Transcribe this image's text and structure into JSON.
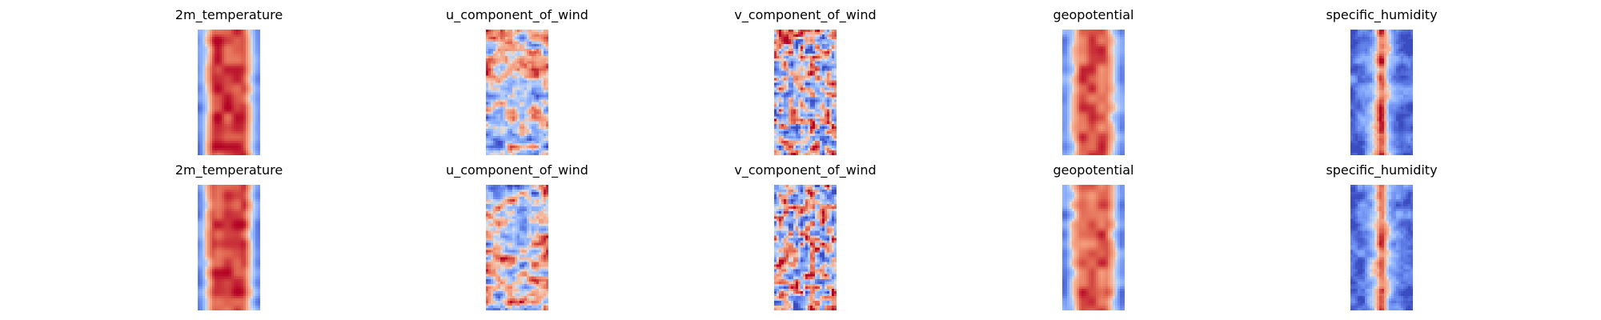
{
  "figure": {
    "colormap": "coolwarm",
    "colors": {
      "cool": "#3b4cc0",
      "neutral": "#dddddd",
      "warm": "#b40426",
      "background": "#ffffff"
    },
    "rows": [
      {
        "panels": [
          {
            "title": "2m_temperature",
            "pattern": "band-warm-center"
          },
          {
            "title": "u_component_of_wind",
            "pattern": "streaky-mixed"
          },
          {
            "title": "v_component_of_wind",
            "pattern": "speckled-mixed"
          },
          {
            "title": "geopotential",
            "pattern": "band-warm-center"
          },
          {
            "title": "specific_humidity",
            "pattern": "narrow-warm-core"
          }
        ]
      },
      {
        "panels": [
          {
            "title": "2m_temperature",
            "pattern": "band-warm-center"
          },
          {
            "title": "u_component_of_wind",
            "pattern": "streaky-mixed"
          },
          {
            "title": "v_component_of_wind",
            "pattern": "speckled-mixed"
          },
          {
            "title": "geopotential",
            "pattern": "band-warm-center"
          },
          {
            "title": "specific_humidity",
            "pattern": "narrow-warm-core"
          }
        ]
      }
    ]
  }
}
